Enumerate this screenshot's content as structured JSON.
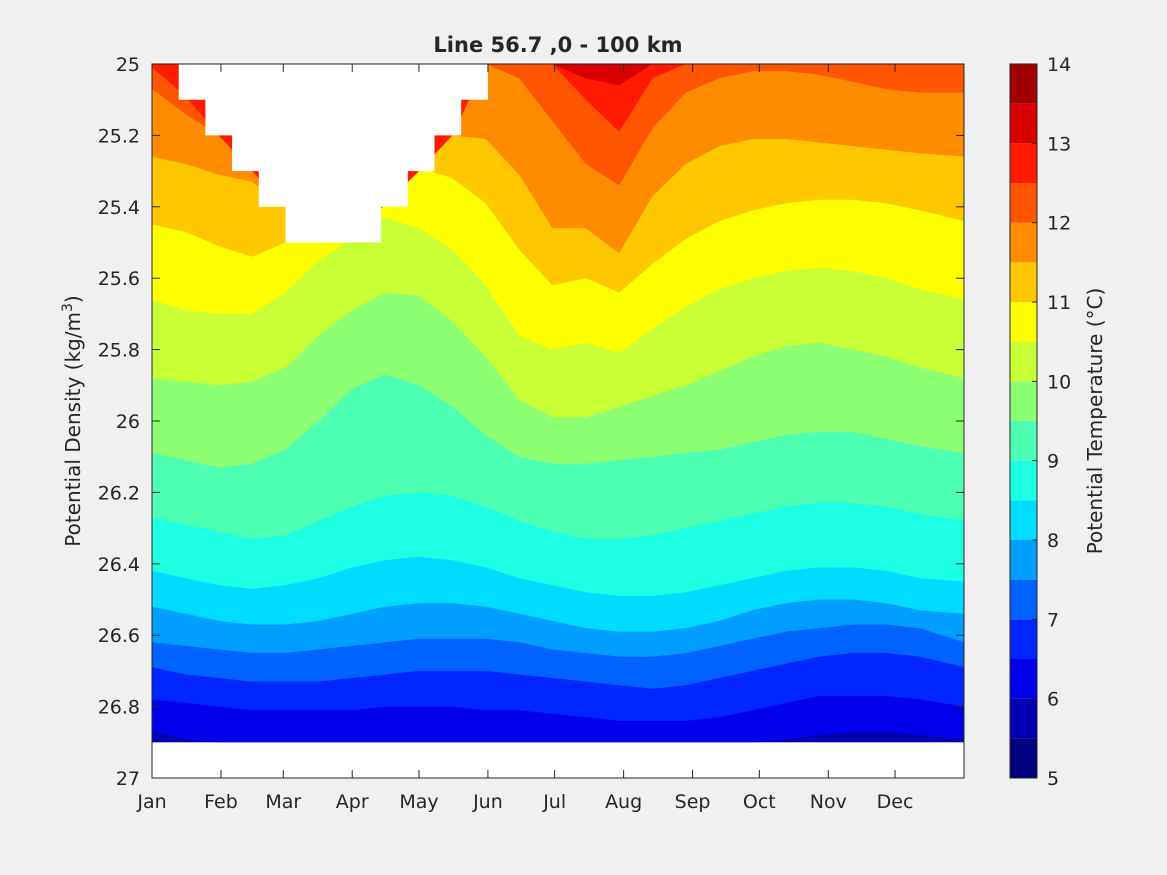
{
  "chart_data": {
    "type": "filled-contour",
    "title": "Line 56.7 ,0 - 100 km",
    "xlabel": "",
    "ylabel": "Potential Density (kg/m",
    "ylabel_superscript": "3",
    "ylabel_suffix": ")",
    "colorbar_label": "Potential Temperature (°C)",
    "x_ticks": [
      "Jan",
      "Feb",
      "Mar",
      "Apr",
      "May",
      "Jun",
      "Jul",
      "Aug",
      "Sep",
      "Oct",
      "Nov",
      "Dec"
    ],
    "x_tick_days": [
      0,
      31,
      59,
      90,
      120,
      151,
      181,
      212,
      243,
      273,
      304,
      334
    ],
    "xlim_days": [
      0,
      365
    ],
    "ylim": [
      25,
      27
    ],
    "y_reversed": true,
    "y_ticks": [
      "25",
      "25.2",
      "25.4",
      "25.6",
      "25.8",
      "26",
      "26.2",
      "26.4",
      "26.6",
      "26.8",
      "27"
    ],
    "y_tick_values": [
      25,
      25.2,
      25.4,
      25.6,
      25.8,
      26,
      26.2,
      26.4,
      26.6,
      26.8,
      27
    ],
    "data_bottom_density": 26.9,
    "colorbar_ticks": [
      "5",
      "6",
      "7",
      "8",
      "9",
      "10",
      "11",
      "12",
      "13",
      "14"
    ],
    "colorbar_tick_values": [
      5,
      6,
      7,
      8,
      9,
      10,
      11,
      12,
      13,
      14
    ],
    "clim": [
      5,
      14
    ],
    "contour_step": 0.5,
    "colormap": [
      "#00007f",
      "#0000b2",
      "#0000ea",
      "#0025ff",
      "#0062ff",
      "#009fff",
      "#00dcff",
      "#1cffe2",
      "#4dffb2",
      "#8cff72",
      "#c9ff35",
      "#ffff00",
      "#ffc700",
      "#ff8c00",
      "#ff5400",
      "#ff1a00",
      "#d80000",
      "#a00000"
    ],
    "isotherm_days": [
      0,
      15,
      30,
      45,
      60,
      75,
      90,
      105,
      120,
      135,
      150,
      165,
      180,
      195,
      210,
      225,
      240,
      255,
      270,
      285,
      300,
      315,
      330,
      345,
      365
    ],
    "isotherms": [
      {
        "temperature": 6.0,
        "density": [
          26.87,
          26.89,
          26.9,
          26.9,
          26.9,
          26.9,
          26.9,
          26.9,
          26.9,
          26.9,
          26.9,
          26.9,
          26.9,
          26.9,
          26.9,
          26.9,
          26.9,
          26.9,
          26.9,
          26.89,
          26.88,
          26.87,
          26.87,
          26.88,
          26.89
        ]
      },
      {
        "temperature": 6.5,
        "density": [
          26.78,
          26.79,
          26.8,
          26.81,
          26.81,
          26.81,
          26.81,
          26.8,
          26.8,
          26.8,
          26.81,
          26.81,
          26.82,
          26.83,
          26.84,
          26.84,
          26.84,
          26.83,
          26.81,
          26.79,
          26.77,
          26.77,
          26.77,
          26.78,
          26.8
        ]
      },
      {
        "temperature": 7.0,
        "density": [
          26.69,
          26.71,
          26.72,
          26.73,
          26.73,
          26.73,
          26.72,
          26.71,
          26.7,
          26.7,
          26.7,
          26.71,
          26.72,
          26.73,
          26.74,
          26.75,
          26.74,
          26.72,
          26.7,
          26.68,
          26.66,
          26.65,
          26.65,
          26.66,
          26.69
        ]
      },
      {
        "temperature": 7.5,
        "density": [
          26.62,
          26.63,
          26.64,
          26.65,
          26.65,
          26.64,
          26.63,
          26.62,
          26.61,
          26.61,
          26.61,
          26.62,
          26.64,
          26.65,
          26.66,
          26.66,
          26.65,
          26.63,
          26.61,
          26.59,
          26.58,
          26.57,
          26.57,
          26.58,
          26.62
        ]
      },
      {
        "temperature": 8.0,
        "density": [
          26.52,
          26.54,
          26.56,
          26.57,
          26.57,
          26.56,
          26.54,
          26.52,
          26.51,
          26.51,
          26.52,
          26.54,
          26.56,
          26.58,
          26.59,
          26.59,
          26.58,
          26.56,
          26.53,
          26.51,
          26.5,
          26.5,
          26.51,
          26.53,
          26.54
        ]
      },
      {
        "temperature": 8.5,
        "density": [
          26.42,
          26.44,
          26.46,
          26.47,
          26.46,
          26.44,
          26.41,
          26.39,
          26.38,
          26.39,
          26.41,
          26.44,
          26.46,
          26.48,
          26.49,
          26.49,
          26.48,
          26.46,
          26.44,
          26.42,
          26.41,
          26.41,
          26.42,
          26.44,
          26.45
        ]
      },
      {
        "temperature": 9.0,
        "density": [
          26.27,
          26.29,
          26.31,
          26.33,
          26.32,
          26.28,
          26.24,
          26.21,
          26.2,
          26.21,
          26.24,
          26.28,
          26.31,
          26.33,
          26.33,
          26.32,
          26.3,
          26.28,
          26.26,
          26.24,
          26.23,
          26.23,
          26.24,
          26.26,
          26.28
        ]
      },
      {
        "temperature": 9.5,
        "density": [
          26.09,
          26.11,
          26.13,
          26.12,
          26.08,
          26.0,
          25.91,
          25.87,
          25.9,
          25.96,
          26.04,
          26.1,
          26.12,
          26.12,
          26.11,
          26.1,
          26.09,
          26.08,
          26.06,
          26.04,
          26.03,
          26.03,
          26.05,
          26.07,
          26.09
        ]
      },
      {
        "temperature": 10.0,
        "density": [
          25.88,
          25.89,
          25.9,
          25.89,
          25.85,
          25.76,
          25.69,
          25.64,
          25.65,
          25.72,
          25.82,
          25.94,
          25.99,
          25.99,
          25.96,
          25.93,
          25.9,
          25.86,
          25.82,
          25.79,
          25.78,
          25.8,
          25.82,
          25.85,
          25.88
        ]
      },
      {
        "temperature": 10.5,
        "density": [
          25.66,
          25.69,
          25.7,
          25.7,
          25.64,
          25.55,
          25.49,
          25.43,
          25.46,
          25.52,
          25.62,
          25.76,
          25.8,
          25.78,
          25.81,
          25.74,
          25.68,
          25.63,
          25.6,
          25.58,
          25.57,
          25.58,
          25.6,
          25.63,
          25.66
        ]
      },
      {
        "temperature": 11.0,
        "density": [
          25.45,
          25.47,
          25.51,
          25.54,
          25.5,
          25.5,
          25.5,
          25.38,
          25.29,
          25.32,
          25.39,
          25.52,
          25.62,
          25.6,
          25.64,
          25.56,
          25.49,
          25.44,
          25.41,
          25.39,
          25.38,
          25.38,
          25.39,
          25.41,
          25.44
        ]
      },
      {
        "temperature": 11.5,
        "density": [
          25.26,
          25.28,
          25.31,
          25.33,
          25.4,
          25.5,
          25.5,
          25.39,
          25.3,
          25.2,
          25.21,
          25.31,
          25.46,
          25.46,
          25.53,
          25.37,
          25.28,
          25.23,
          25.21,
          25.21,
          25.22,
          25.23,
          25.24,
          25.25,
          25.26
        ]
      },
      {
        "temperature": 12.0,
        "density": [
          25.07,
          25.14,
          25.2,
          25.3,
          25.4,
          25.5,
          25.5,
          25.39,
          25.3,
          25.2,
          25.0,
          25.04,
          25.16,
          25.28,
          25.34,
          25.18,
          25.08,
          25.04,
          25.02,
          25.02,
          25.03,
          25.05,
          25.07,
          25.08,
          25.08
        ]
      },
      {
        "temperature": 12.5,
        "density": [
          25.01,
          25.09,
          25.2,
          25.3,
          25.4,
          25.5,
          25.5,
          25.39,
          25.3,
          25.2,
          25.0,
          25.0,
          25.0,
          25.1,
          25.19,
          25.04,
          25.0,
          25.0,
          25.0,
          25.0,
          25.0,
          25.0,
          25.0,
          25.0,
          25.0
        ]
      },
      {
        "temperature": 13.0,
        "density": [
          25.0,
          25.0,
          25.0,
          25.0,
          25.0,
          25.0,
          25.0,
          25.0,
          25.0,
          25.0,
          25.0,
          25.0,
          25.0,
          25.04,
          25.06,
          25.0,
          25.0,
          25.0,
          25.0,
          25.0,
          25.0,
          25.0,
          25.0,
          25.0,
          25.0
        ]
      }
    ],
    "no_data_region": {
      "day": [
        12,
        12,
        24,
        24,
        36,
        36,
        48,
        48,
        60,
        60,
        103,
        103,
        115,
        115,
        127,
        127,
        139,
        139,
        151,
        151
      ],
      "density": [
        25,
        25.1,
        25.1,
        25.2,
        25.2,
        25.3,
        25.3,
        25.4,
        25.4,
        25.5,
        25.5,
        25.4,
        25.4,
        25.3,
        25.3,
        25.2,
        25.2,
        25.1,
        25.1,
        25
      ]
    }
  }
}
